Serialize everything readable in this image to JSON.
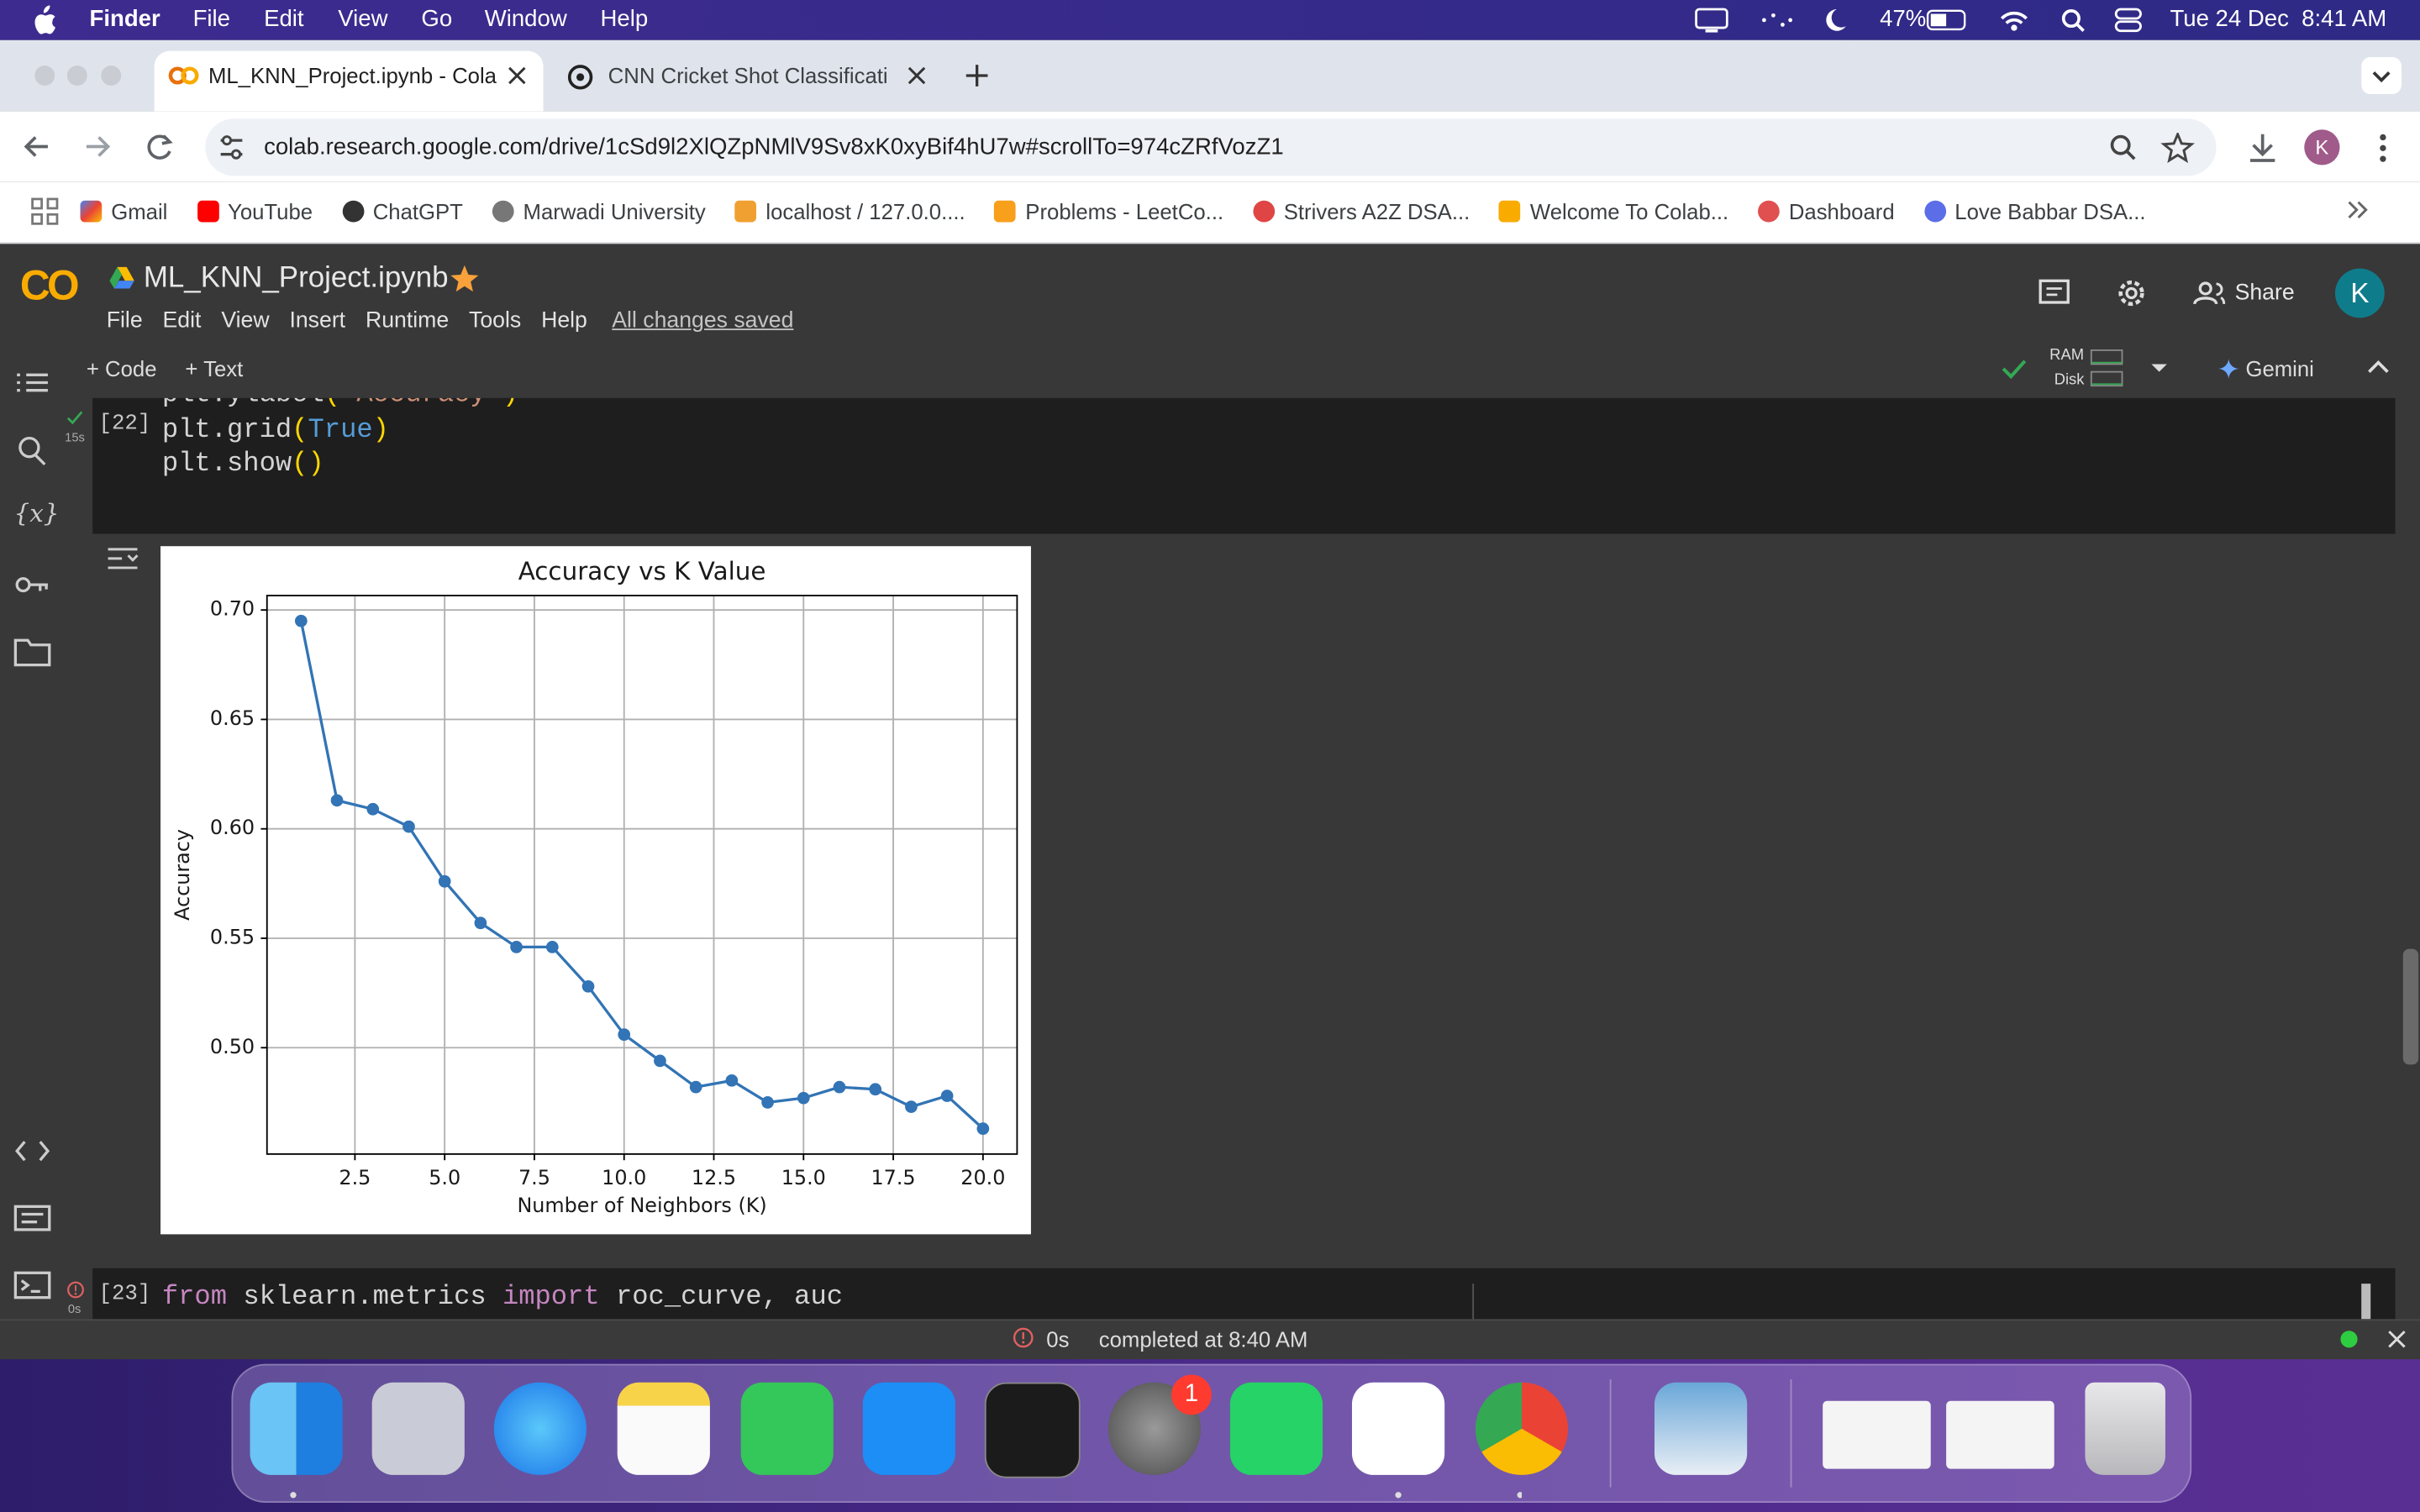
{
  "menubar": {
    "app": "Finder",
    "items": [
      "File",
      "Edit",
      "View",
      "Go",
      "Window",
      "Help"
    ],
    "battery": "47%",
    "datetime": "Tue 24 Dec  8:41 AM"
  },
  "browser": {
    "tabs": [
      "ML_KNN_Project.ipynb - Cola",
      "CNN Cricket Shot Classificati"
    ],
    "url": "colab.research.google.com/drive/1cSd9l2XlQZpNMlV9Sv8xK0xyBif4hU7w#scrollTo=974cZRfVozZ1",
    "profile": "K",
    "bookmarks": [
      "Gmail",
      "YouTube",
      "ChatGPT",
      "Marwadi University",
      "localhost / 127.0.0....",
      "Problems - LeetCo...",
      "Strivers A2Z DSA...",
      "Welcome To Colab...",
      "Dashboard",
      "Love Babbar DSA..."
    ]
  },
  "colab": {
    "logo": "CO",
    "notebook": "ML_KNN_Project.ipynb",
    "menu": [
      "File",
      "Edit",
      "View",
      "Insert",
      "Runtime",
      "Tools",
      "Help"
    ],
    "saved": "All changes saved",
    "share": "Share",
    "avatar": "K",
    "toolbar": {
      "add_code": "+ Code",
      "add_text": "+ Text",
      "ram": "RAM",
      "disk": "Disk",
      "gemini": "Gemini"
    },
    "sidebar_variables": "{x}"
  },
  "cells": [
    {
      "exec": "[22]",
      "time": "15s",
      "lines": [
        [
          {
            "text": "plt.ylabel",
            "color": "#d4d4d4"
          },
          {
            "text": "(",
            "color": "#ffd700"
          },
          {
            "text": "'Accuracy'",
            "color": "#ce9178"
          },
          {
            "text": ")",
            "color": "#ffd700"
          }
        ],
        [
          {
            "text": "plt.grid",
            "color": "#d4d4d4"
          },
          {
            "text": "(",
            "color": "#ffd700"
          },
          {
            "text": "True",
            "color": "#569cd6"
          },
          {
            "text": ")",
            "color": "#ffd700"
          }
        ],
        [
          {
            "text": "plt.show",
            "color": "#d4d4d4"
          },
          {
            "text": "()",
            "color": "#ffd700"
          }
        ]
      ]
    },
    {
      "exec": "[23]",
      "time": "0s",
      "lines": [
        [
          {
            "text": "from",
            "color": "#c586c0"
          },
          {
            "text": " sklearn.metrics ",
            "color": "#d4d4d4"
          },
          {
            "text": "import",
            "color": "#c586c0"
          },
          {
            "text": " roc_curve, auc",
            "color": "#d4d4d4"
          }
        ]
      ]
    }
  ],
  "chart_data": {
    "type": "line",
    "title": "Accuracy vs K Value",
    "x_label": "Number of Neighbors (K)",
    "y_label": "Accuracy",
    "x": [
      1,
      2,
      3,
      4,
      5,
      6,
      7,
      8,
      9,
      10,
      11,
      12,
      13,
      14,
      15,
      16,
      17,
      18,
      19,
      20
    ],
    "values": [
      0.695,
      0.613,
      0.609,
      0.601,
      0.576,
      0.557,
      0.546,
      0.546,
      0.528,
      0.506,
      0.494,
      0.482,
      0.485,
      0.475,
      0.477,
      0.482,
      0.481,
      0.473,
      0.478,
      0.463
    ],
    "color": "#3274b5",
    "xlim": [
      0.05,
      20.95
    ],
    "ylim": [
      0.4514,
      0.7066
    ],
    "xticks": [
      2.5,
      {
        "value": 5,
        "label": "5.0"
      },
      7.5,
      {
        "value": 10,
        "label": "10.0"
      },
      12.5,
      {
        "value": 15,
        "label": "15.0"
      },
      17.5,
      {
        "value": 20,
        "label": "20.0"
      }
    ],
    "yticks": [
      {
        "value": 0.5,
        "label": "0.50"
      },
      0.55,
      {
        "value": 0.6,
        "label": "0.60"
      },
      0.65,
      {
        "value": 0.7,
        "label": "0.70"
      }
    ],
    "grid": true
  },
  "status": {
    "time": "0s",
    "message": "completed at 8:40 AM"
  },
  "dock": {
    "badge": "1"
  }
}
